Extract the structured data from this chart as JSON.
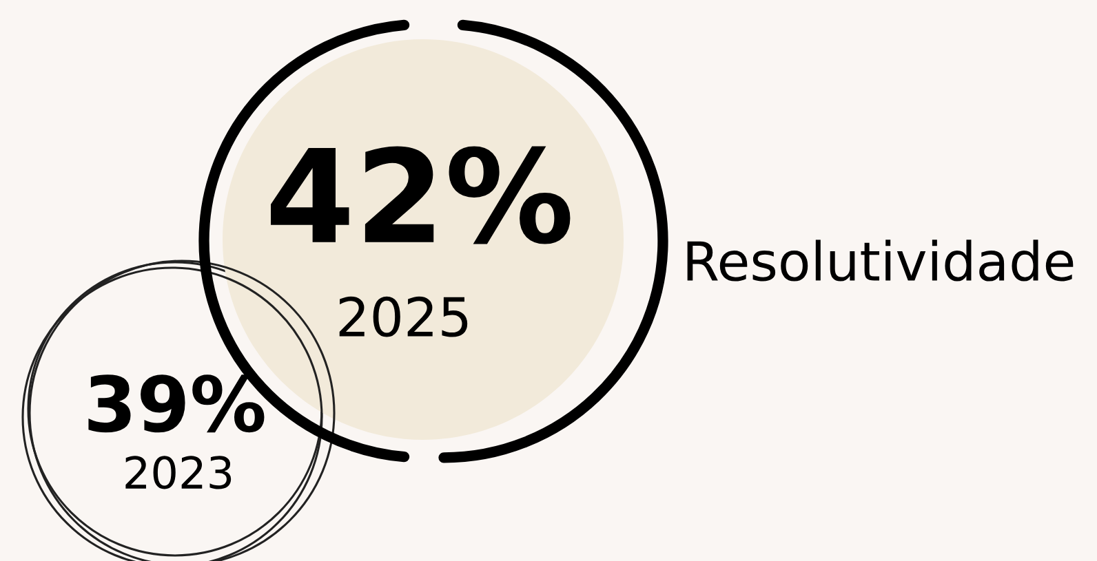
{
  "chart_data": {
    "type": "other",
    "title": "Resolutividade",
    "categories": [
      "2025",
      "2023"
    ],
    "values": [
      42,
      39
    ],
    "value_labels": [
      "42%",
      "39%"
    ],
    "colors": [
      "#f2eada",
      "#faf6f3"
    ]
  }
}
